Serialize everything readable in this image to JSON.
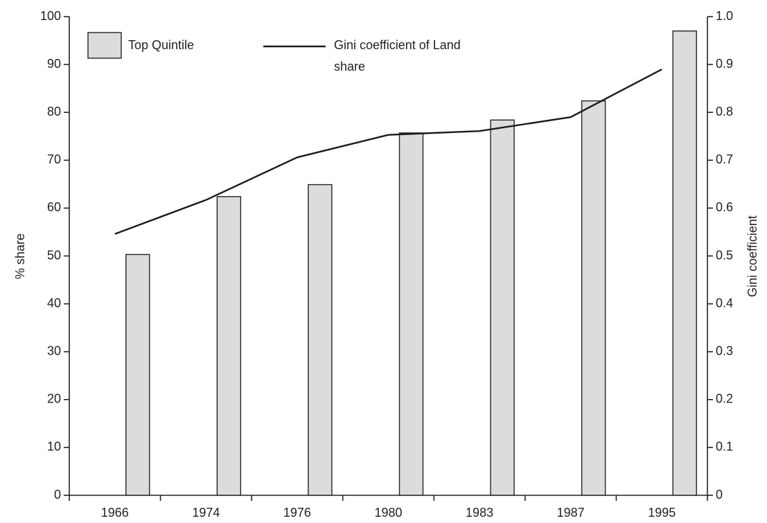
{
  "chart_data": {
    "type": "bar-line",
    "y_label": "% share",
    "y2_label": "Gini coefficient",
    "categories": [
      "1966",
      "1974",
      "1976",
      "1980",
      "1983",
      "1987",
      "1995"
    ],
    "series": [
      {
        "name": "Top Quintile",
        "type": "bar",
        "color": "#dcdcdc",
        "values": [
          50.3,
          62.4,
          64.9,
          75.7,
          78.4,
          82.4,
          97
        ]
      },
      {
        "name": "Gini coefficient of Land share",
        "type": "line",
        "axis": "y2",
        "color": "#1a1a1a",
        "values": [
          0.546,
          0.617,
          0.706,
          0.753,
          0.761,
          0.79,
          0.89
        ]
      }
    ],
    "ylim": [
      0,
      100
    ],
    "yticks": [
      0,
      10,
      20,
      30,
      40,
      50,
      60,
      70,
      80,
      90,
      100
    ],
    "y2lim": [
      0,
      1
    ],
    "y2ticks": [
      0,
      0.1,
      0.2,
      0.3,
      0.4,
      0.5,
      0.6,
      0.7,
      0.8,
      0.9,
      {
        "value": 1,
        "label": "1.0"
      }
    ],
    "grid": false
  }
}
